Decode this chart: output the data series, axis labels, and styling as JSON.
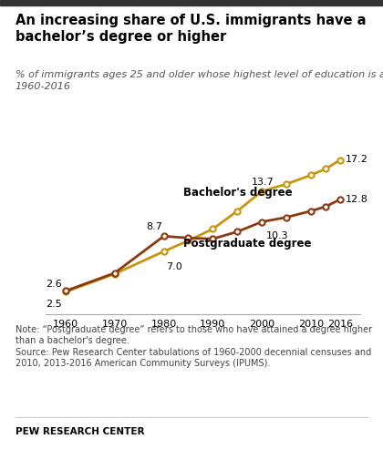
{
  "title": "An increasing share of U.S. immigrants have a\nbachelor’s degree or higher",
  "subtitle": "% of immigrants ages 25 and older whose highest level of education is a __,\n1960-2016",
  "years": [
    1960,
    1970,
    1980,
    1985,
    1990,
    1995,
    2000,
    2005,
    2010,
    2013,
    2016
  ],
  "bachelor": [
    2.5,
    4.5,
    7.0,
    8.2,
    9.5,
    11.5,
    13.7,
    14.5,
    15.5,
    16.2,
    17.2
  ],
  "postgrad": [
    2.6,
    4.6,
    8.7,
    8.5,
    8.4,
    9.2,
    10.3,
    10.8,
    11.5,
    12.0,
    12.8
  ],
  "bachelor_color": "#C8960C",
  "postgrad_color": "#8B3A0F",
  "bachelor_label": "Bachelor's degree",
  "postgrad_label": "Postgraduate degree",
  "note1": "Note: “Postgraduate degree” refers to those who have attained a degree higher than a bachelor's degree.",
  "note2": "Source: Pew Research Center tabulations of 1960-2000 decennial censuses and 2010, 2013-2016 American Community Surveys (IPUMS).",
  "footer": "PEW RESEARCH CENTER",
  "xlim": [
    1956,
    2020
  ],
  "ylim": [
    0,
    20
  ],
  "top_bar_color": "#333333"
}
